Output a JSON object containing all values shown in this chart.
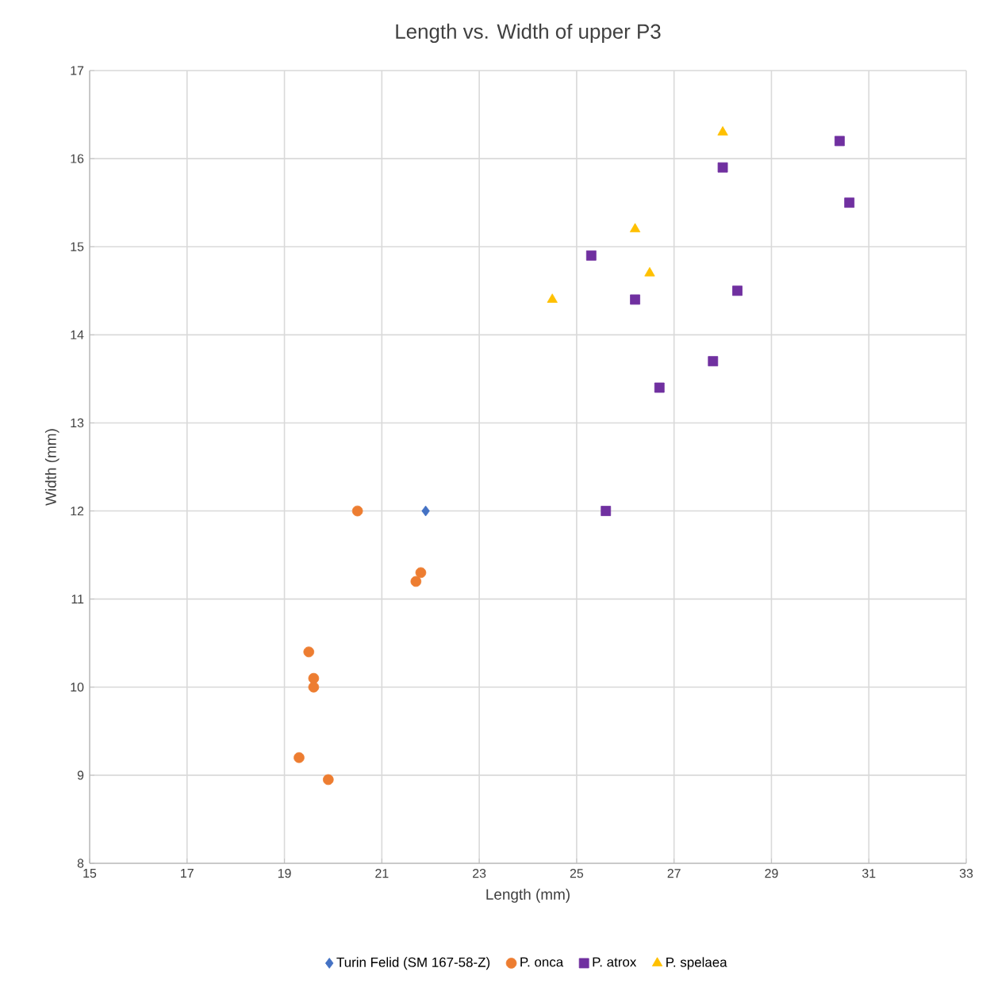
{
  "chart_data": {
    "type": "scatter",
    "title": "Length vs. Width of upper P3",
    "xlabel": "Length (mm)",
    "ylabel": "Width (mm)",
    "xlim": [
      15,
      33
    ],
    "xticks": [
      15,
      17,
      19,
      21,
      23,
      25,
      27,
      29,
      31,
      33
    ],
    "ylim": [
      8,
      17
    ],
    "yticks": [
      8,
      9,
      10,
      11,
      12,
      13,
      14,
      15,
      16,
      17
    ],
    "grid": true,
    "legend": "bottom",
    "series": [
      {
        "name": "Turin Felid (SM 167-58-Z)",
        "color": "#4472c4",
        "marker": "diamond",
        "x": [
          21.9
        ],
        "values": [
          12.0
        ]
      },
      {
        "name": "P. onca",
        "color": "#ed7d31",
        "marker": "circle",
        "x": [
          20.5,
          21.8,
          21.7,
          19.5,
          19.6,
          19.6,
          19.3,
          19.9
        ],
        "values": [
          12.0,
          11.3,
          11.2,
          10.4,
          10.1,
          10.0,
          9.2,
          8.95
        ]
      },
      {
        "name": "P. atrox",
        "color": "#7030a0",
        "marker": "square",
        "x": [
          30.4,
          28.0,
          30.6,
          25.3,
          26.2,
          28.3,
          27.8,
          26.7,
          25.6
        ],
        "values": [
          16.2,
          15.9,
          15.5,
          14.9,
          14.4,
          14.5,
          13.7,
          13.4,
          12.0
        ]
      },
      {
        "name": "P. spelaea",
        "color": "#ffc000",
        "marker": "triangle",
        "x": [
          28.0,
          26.2,
          26.5,
          24.5
        ],
        "values": [
          16.3,
          15.2,
          14.7,
          14.4
        ]
      }
    ]
  }
}
